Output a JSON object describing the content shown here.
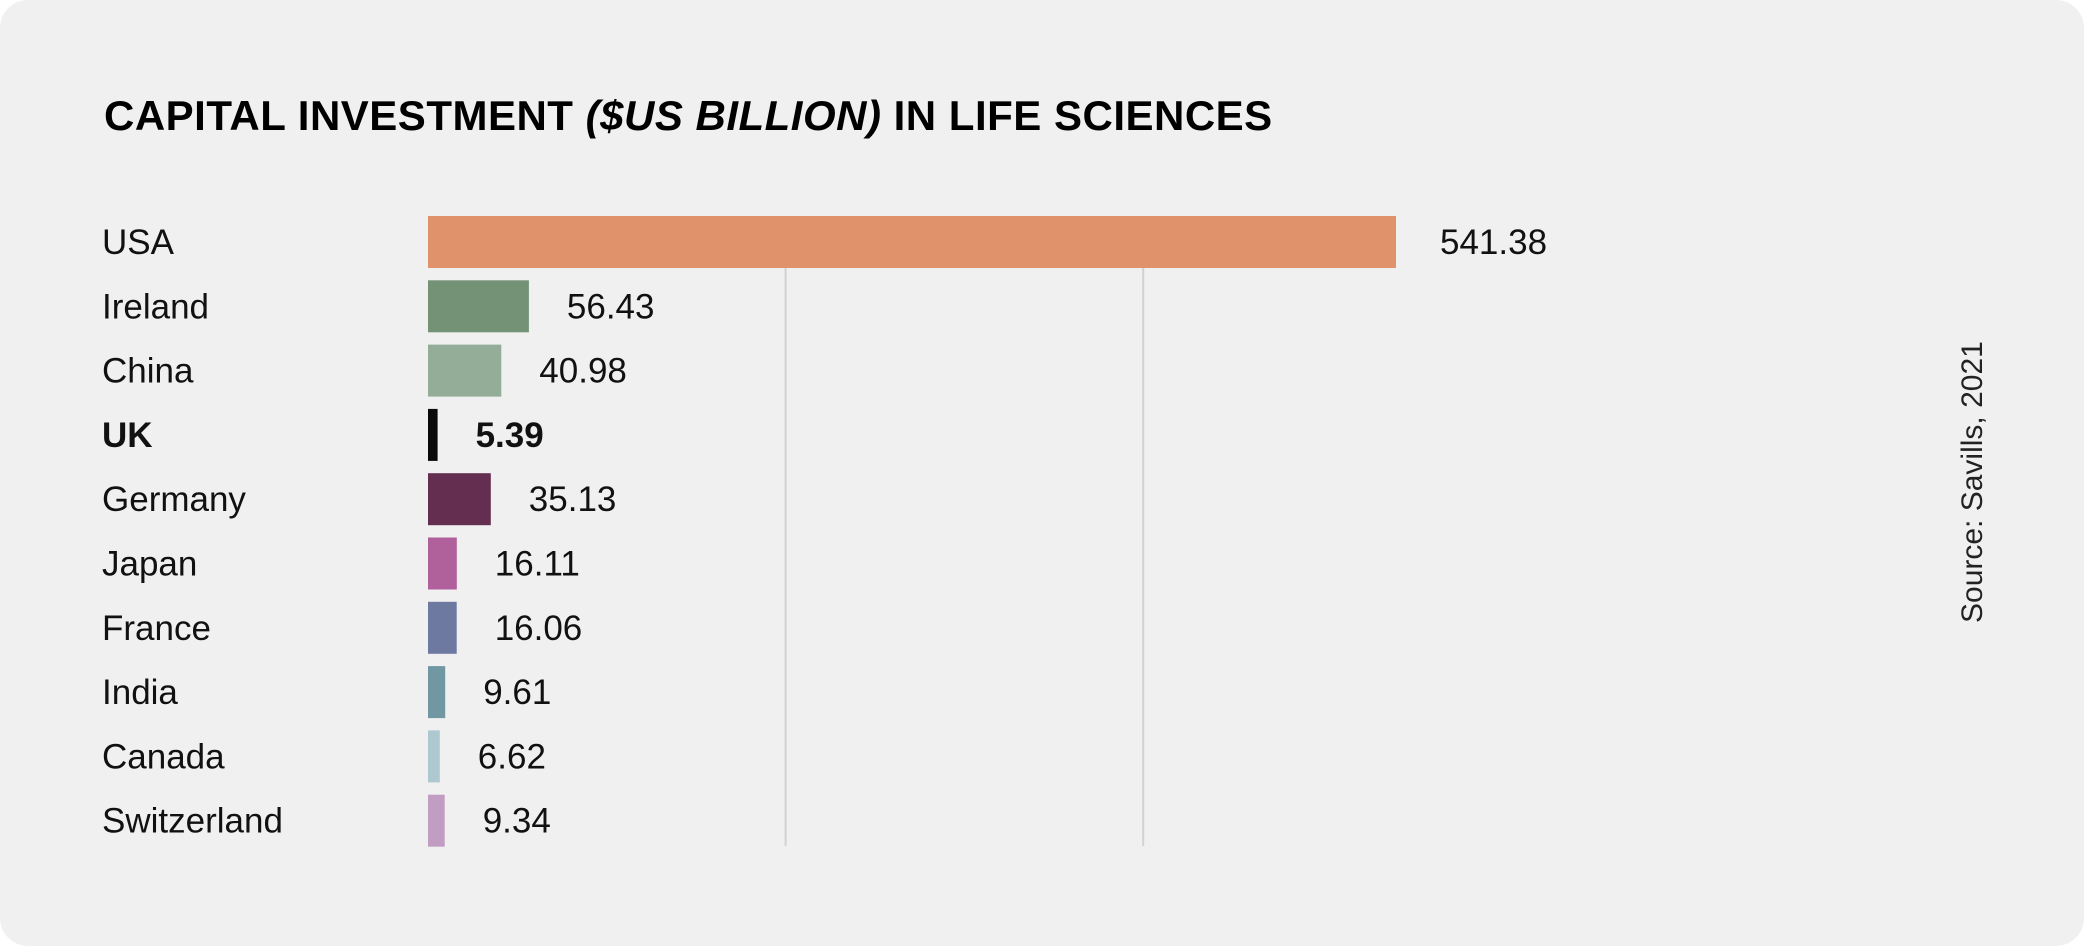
{
  "chart_data": {
    "type": "bar",
    "orientation": "horizontal",
    "title_parts": [
      {
        "text": "CAPITAL INVESTMENT ",
        "italic": false
      },
      {
        "text": "($US BILLION)",
        "italic": true
      },
      {
        "text": " IN LIFE SCIENCES",
        "italic": false
      }
    ],
    "categories": [
      "USA",
      "Ireland",
      "China",
      "UK",
      "Germany",
      "Japan",
      "France",
      "India",
      "Canada",
      "Switzerland"
    ],
    "values": [
      541.38,
      56.43,
      40.98,
      5.39,
      35.13,
      16.11,
      16.06,
      9.61,
      6.62,
      9.34
    ],
    "value_labels": [
      "541.38",
      "56.43",
      "40.98",
      "5.39",
      "35.13",
      "16.11",
      "16.06",
      "9.61",
      "6.62",
      "9.34"
    ],
    "colors": [
      "#e0936a",
      "#739276",
      "#93ad98",
      "#0a0a0a",
      "#632e4f",
      "#b0609a",
      "#6e79a2",
      "#7197a3",
      "#adc8ce",
      "#c19dc4"
    ],
    "highlight": "UK",
    "xlim": [
      0,
      600
    ],
    "gridlines": [
      200,
      400
    ],
    "grid": true,
    "legend": "none",
    "source": "Source: Savills, 2021"
  }
}
